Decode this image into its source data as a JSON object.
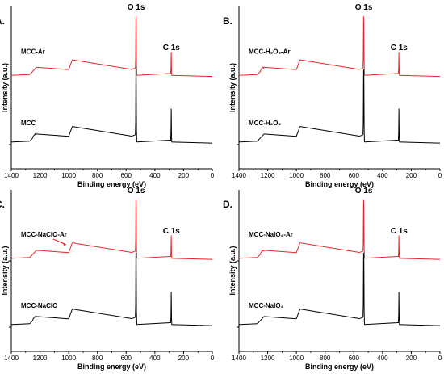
{
  "chart_data": [
    {
      "panel": "A.",
      "type": "line",
      "xlabel": "Binding energy (eV)",
      "ylabel": "Intensity (a.u.)",
      "xlim": [
        1400,
        0
      ],
      "xticks": [
        1400,
        1200,
        1000,
        800,
        600,
        400,
        200,
        0
      ],
      "xreversed": true,
      "peak_labels": [
        {
          "text": "O 1s",
          "x": 531
        },
        {
          "text": "C 1s",
          "x": 285
        }
      ],
      "series": [
        {
          "name": "MCC-Ar",
          "label": "MCC-Ar",
          "color": "#e8232a",
          "offset": 1
        },
        {
          "name": "MCC",
          "label": "MCC",
          "color": "#000000",
          "offset": 0
        }
      ]
    },
    {
      "panel": "B.",
      "type": "line",
      "xlabel": "Binding energy (eV)",
      "ylabel": "Intensity (a.u.)",
      "xlim": [
        1400,
        0
      ],
      "xticks": [
        1400,
        1200,
        1000,
        800,
        600,
        400,
        200,
        0
      ],
      "xreversed": true,
      "peak_labels": [
        {
          "text": "O 1s",
          "x": 531
        },
        {
          "text": "C 1s",
          "x": 285
        }
      ],
      "series": [
        {
          "name": "MCC-H2O2-Ar",
          "label": "MCC-H₂O₂-Ar",
          "color": "#e8232a",
          "offset": 1
        },
        {
          "name": "MCC-H2O2",
          "label": "MCC-H₂O₂",
          "color": "#000000",
          "offset": 0
        }
      ]
    },
    {
      "panel": "C.",
      "type": "line",
      "xlabel": "Binding energy (eV)",
      "ylabel": "Intensity (a.u.)",
      "xlim": [
        1400,
        0
      ],
      "xticks": [
        1400,
        1200,
        1000,
        800,
        600,
        400,
        200,
        0
      ],
      "xreversed": true,
      "peak_labels": [
        {
          "text": "O 1s",
          "x": 531
        },
        {
          "text": "C 1s",
          "x": 285
        }
      ],
      "series": [
        {
          "name": "MCC-NaClO-Ar",
          "label": "MCC-NaClO-Ar",
          "color": "#e8232a",
          "offset": 1
        },
        {
          "name": "MCC-NaClO",
          "label": "MCC-NaClO",
          "color": "#000000",
          "offset": 0
        }
      ]
    },
    {
      "panel": "D.",
      "type": "line",
      "xlabel": "Binding energy (eV)",
      "ylabel": "Intensity (a.u.)",
      "xlim": [
        1400,
        0
      ],
      "xticks": [
        1400,
        1200,
        1000,
        800,
        600,
        400,
        200,
        0
      ],
      "xreversed": true,
      "peak_labels": [
        {
          "text": "O 1s",
          "x": 531
        },
        {
          "text": "C 1s",
          "x": 285
        }
      ],
      "series": [
        {
          "name": "MCC-NaIO4-Ar",
          "label": "MCC-NaIO₄-Ar",
          "color": "#e8232a",
          "offset": 1
        },
        {
          "name": "MCC-NaIO4",
          "label": "MCC-NaIO₄",
          "color": "#000000",
          "offset": 0
        }
      ]
    }
  ]
}
